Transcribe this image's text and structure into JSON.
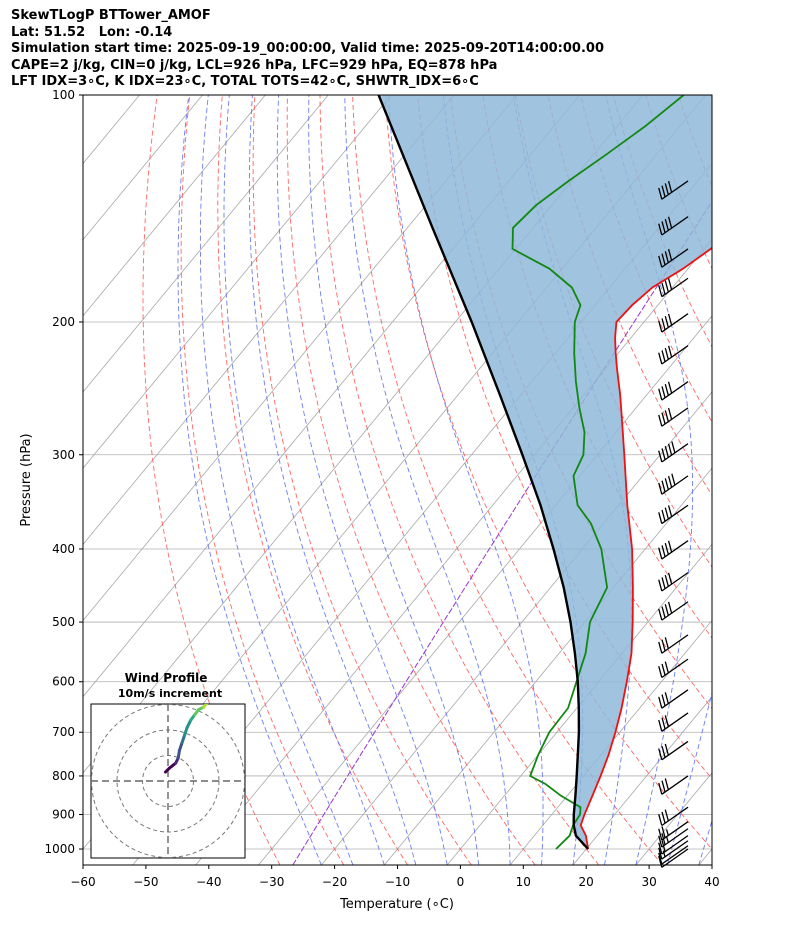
{
  "header": {
    "line1": "SkewTLogP BTTower_AMOF",
    "line2": "Lat: 51.52   Lon: -0.14",
    "line3": "Simulation start time: 2025-09-19_00:00:00, Valid time: 2025-09-20T14:00:00.00",
    "line4": "CAPE=2 j/kg, CIN=0 j/kg, LCL=926 hPa, LFC=929 hPa, EQ=878 hPa",
    "line5": "LFT IDX=3∘C, K IDX=23∘C, TOTAL TOTS=42∘C, SHWTR_IDX=6∘C"
  },
  "chart_data": {
    "type": "line",
    "subtype": "skew-t-log-p",
    "xlabel": "Temperature (∘C)",
    "ylabel": "Pressure (hPa)",
    "xlim": [
      -60,
      40
    ],
    "ylim": [
      1050,
      100
    ],
    "x_ticks": [
      -60,
      -50,
      -40,
      -30,
      -20,
      -10,
      0,
      10,
      20,
      30,
      40
    ],
    "x_tick_labels": [
      "−60",
      "−50",
      "−40",
      "−30",
      "−20",
      "−10",
      "0",
      "10",
      "20",
      "30",
      "40"
    ],
    "y_ticks": [
      1000,
      900,
      800,
      700,
      600,
      500,
      400,
      300,
      200,
      100
    ],
    "y_tick_labels": [
      "1000",
      "900",
      "800",
      "700",
      "600",
      "500",
      "400",
      "300",
      "200",
      "100"
    ],
    "series": [
      {
        "name": "temperature",
        "color": "#ee1111",
        "p": [
          1000,
          960,
          930,
          900,
          850,
          800,
          750,
          700,
          650,
          600,
          550,
          500,
          450,
          400,
          350,
          300,
          270,
          250,
          230,
          220,
          210,
          200,
          190,
          180,
          170,
          160,
          150,
          140,
          130,
          120,
          110,
          100
        ],
        "t": [
          20.3,
          18.2,
          16.0,
          15.2,
          14.0,
          12.7,
          11.2,
          9.3,
          7.1,
          4.5,
          1.5,
          -2.4,
          -6.9,
          -12.1,
          -18.6,
          -25.7,
          -30.6,
          -34.2,
          -38.3,
          -40.4,
          -42.5,
          -44.4,
          -44.1,
          -43.2,
          -40.8,
          -39.0,
          -37.8,
          -36.7,
          -34.5,
          -32.4,
          -30.6,
          -30.0
        ]
      },
      {
        "name": "dewpoint",
        "color": "#118811",
        "p": [
          1000,
          960,
          930,
          900,
          880,
          850,
          820,
          800,
          750,
          700,
          650,
          600,
          550,
          500,
          450,
          400,
          370,
          350,
          320,
          300,
          280,
          260,
          240,
          220,
          200,
          190,
          180,
          170,
          160,
          150,
          140,
          130,
          120,
          110,
          100
        ],
        "t": [
          15.2,
          15.6,
          14.8,
          14.5,
          13.6,
          9.0,
          5.0,
          1.5,
          0.0,
          -1.2,
          -1.4,
          -3.5,
          -5.8,
          -9.2,
          -11.0,
          -17.0,
          -22.0,
          -26.5,
          -31.0,
          -32.2,
          -35.0,
          -39.0,
          -43.0,
          -47.0,
          -51.0,
          -52.3,
          -56.0,
          -62.0,
          -70.5,
          -73.2,
          -72.5,
          -70.5,
          -68.0,
          -65.5,
          -63.5
        ]
      },
      {
        "name": "parcel",
        "color": "#000000",
        "p": [
          1000,
          960,
          930,
          900,
          850,
          800,
          750,
          700,
          650,
          600,
          550,
          500,
          450,
          400,
          350,
          300,
          250,
          200,
          150,
          100
        ],
        "t": [
          20.3,
          16.6,
          14.9,
          13.5,
          11.3,
          8.9,
          6.3,
          3.5,
          0.3,
          -3.3,
          -7.5,
          -12.3,
          -17.9,
          -24.6,
          -32.4,
          -41.9,
          -53.3,
          -67.4,
          -86.0,
          -112.0
        ]
      }
    ],
    "cape_fill_color": "#8fb8d9",
    "wind_barbs": {
      "pressures": [
        1000,
        990,
        975,
        960,
        940,
        920,
        880,
        800,
        720,
        660,
        615,
        560,
        520,
        470,
        430,
        390,
        350,
        320,
        290,
        260,
        240,
        215,
        195,
        175,
        160,
        145,
        130
      ],
      "speeds_ms": [
        4,
        6,
        8,
        10,
        12,
        14,
        15,
        15,
        15,
        15,
        15,
        15,
        15,
        20,
        20,
        20,
        20,
        25,
        25,
        20,
        20,
        20,
        20,
        20,
        20,
        20,
        20
      ],
      "direction_deg": 235
    },
    "hodograph": {
      "title": "Wind Profile",
      "subtitle": "10m/s increment",
      "rings_ms": [
        10,
        20,
        30
      ],
      "u_ms": [
        -1,
        0.5,
        3,
        4,
        4.5,
        5.5,
        6.5,
        7.5,
        9,
        10.5,
        12,
        14,
        15.5,
        16.5
      ],
      "v_ms": [
        3.5,
        5,
        7,
        9,
        12,
        15,
        18,
        21,
        24,
        26,
        28,
        29,
        31,
        31.5
      ]
    }
  }
}
